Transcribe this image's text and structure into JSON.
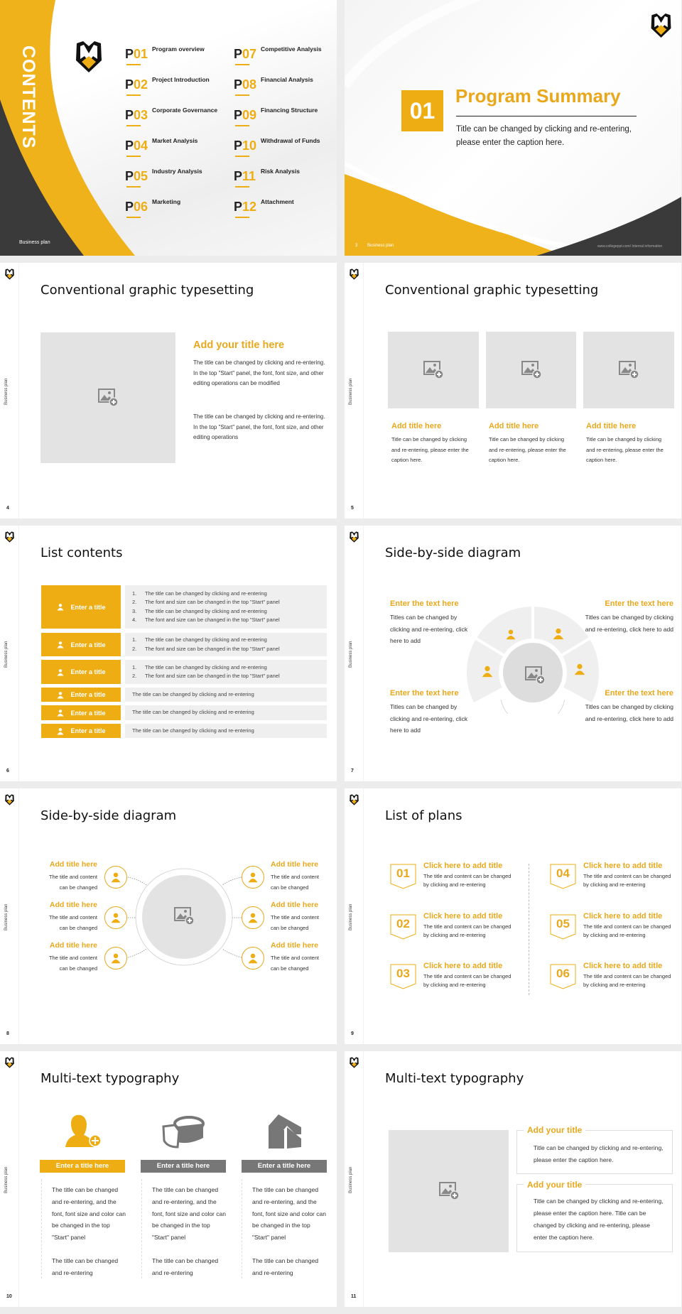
{
  "brand": {
    "accent": "#eeae13",
    "dark": "#3a3a3a",
    "placeholder": "#e4e3e3",
    "footer": "Business plan",
    "logo": "shield-m-logo"
  },
  "contents": {
    "heading": "CONTENTS",
    "items": [
      {
        "p": "P",
        "num": "01",
        "label": "Program overview"
      },
      {
        "p": "P",
        "num": "02",
        "label": "Project Introduction"
      },
      {
        "p": "P",
        "num": "03",
        "label": "Corporate Governance"
      },
      {
        "p": "P",
        "num": "04",
        "label": "Market Analysis"
      },
      {
        "p": "P",
        "num": "05",
        "label": "Industry Analysis"
      },
      {
        "p": "P",
        "num": "06",
        "label": "Marketing"
      },
      {
        "p": "P",
        "num": "07",
        "label": "Competitive Analysis"
      },
      {
        "p": "P",
        "num": "08",
        "label": "Financial Analysis"
      },
      {
        "p": "P",
        "num": "09",
        "label": "Financing Structure"
      },
      {
        "p": "P",
        "num": "10",
        "label": "Withdrawal of Funds"
      },
      {
        "p": "P",
        "num": "11",
        "label": "Risk Analysis"
      },
      {
        "p": "P",
        "num": "12",
        "label": "Attachment"
      }
    ]
  },
  "section": {
    "number": "01",
    "title": "Program Summary",
    "line1": "Title can be changed by clicking and re-entering,",
    "line2": "please enter the caption here.",
    "page": "3",
    "url": "www.collegeppt.com/ Internal information"
  },
  "slide4": {
    "page": "4",
    "title": "Conventional graphic typesetting",
    "heading": "Add your title here",
    "p1": "The title can be changed by clicking and re-entering. In the top \"Start\" panel, the font, font size, and other editing operations can be modified",
    "p2": "The title can be changed by clicking and re-entering. In the top \"Start\" panel, the font, font size, and other editing operations"
  },
  "slide5": {
    "page": "5",
    "title": "Conventional graphic typesetting",
    "cards": [
      {
        "title": "Add title here",
        "text": "Title can be changed by clicking and re-entering, please enter the caption here."
      },
      {
        "title": "Add title here",
        "text": "Title can be changed by clicking and re-entering, please enter the caption here."
      },
      {
        "title": "Add title here",
        "text": "Title can be changed by clicking and re-entering, please enter the caption here."
      }
    ]
  },
  "slide6": {
    "page": "6",
    "title": "List contents",
    "rows": [
      {
        "label": "Enter a title",
        "icon": "meeting-icon",
        "lines": [
          "1.|The title can be changed by clicking and re-entering",
          "2.|The font and size can be changed in the top \"Start\" panel",
          "3.|The title can be changed by clicking and re-entering",
          "4.|The font and size can be changed in the top \"Start\" panel"
        ]
      },
      {
        "label": "Enter a title",
        "icon": "users-icon",
        "lines": [
          "1.|The title can be changed by clicking and re-entering",
          "2.|The font and size can be changed in the top \"Start\" panel"
        ]
      },
      {
        "label": "Enter a title",
        "icon": "shield-icon",
        "lines": [
          "1.|The title can be changed by clicking and re-entering",
          "2.|The font and size can be changed in the top \"Start\" panel"
        ]
      },
      {
        "label": "Enter a title",
        "icon": "bar-chart-icon",
        "lines": [
          "The title can be changed by clicking and re-entering"
        ]
      },
      {
        "label": "Enter a title",
        "icon": "team-icon",
        "lines": [
          "The title can be changed by clicking and re-entering"
        ]
      },
      {
        "label": "Enter a title",
        "icon": "hand-user-icon",
        "lines": [
          "The title can be changed by clicking and re-entering"
        ]
      }
    ]
  },
  "slide7": {
    "page": "7",
    "title": "Side-by-side diagram",
    "blocks": [
      {
        "title": "Enter the text here",
        "text": "Titles can be changed by clicking and re-entering, click here to add"
      },
      {
        "title": "Enter the text here",
        "text": "Titles can be changed by clicking and re-entering, click here to add"
      },
      {
        "title": "Enter the text here",
        "text": "Titles can be changed by clicking and re-entering, click here to add"
      },
      {
        "title": "Enter the text here",
        "text": "Titles can be changed by clicking and re-entering, click here to add"
      }
    ]
  },
  "slide8": {
    "page": "8",
    "title": "Side-by-side diagram",
    "items": [
      {
        "title": "Add title here",
        "text": "The title and content can be changed"
      },
      {
        "title": "Add title here",
        "text": "The title and content can be changed"
      },
      {
        "title": "Add title here",
        "text": "The title and content can be changed"
      },
      {
        "title": "Add title here",
        "text": "The title and content can be changed"
      },
      {
        "title": "Add title here",
        "text": "The title and content can be changed"
      },
      {
        "title": "Add title here",
        "text": "The title and content can be changed"
      }
    ]
  },
  "slide9": {
    "page": "9",
    "title": "List of plans",
    "plans": [
      {
        "num": "01",
        "title": "Click here to add title",
        "text": "The title and content can be changed by clicking and re-entering"
      },
      {
        "num": "02",
        "title": "Click here to add title",
        "text": "The title and content can be changed by clicking and re-entering"
      },
      {
        "num": "03",
        "title": "Click here to add title",
        "text": "The title and content can be changed by clicking and re-entering"
      },
      {
        "num": "04",
        "title": "Click here to add title",
        "text": "The title and content can be changed by clicking and re-entering"
      },
      {
        "num": "05",
        "title": "Click here to add title",
        "text": "The title and content can be changed by clicking and re-entering"
      },
      {
        "num": "06",
        "title": "Click here to add title",
        "text": "The title and content can be changed by clicking and re-entering"
      }
    ]
  },
  "slide10": {
    "page": "10",
    "title": "Multi-text typography",
    "cols": [
      {
        "header": "Enter a title here",
        "p1": "The title can be changed and re-entering, and the font, font size and color can be changed in the top \"Start\" panel",
        "p2": "The title can be changed and re-entering"
      },
      {
        "header": "Enter a title here",
        "p1": "The title can be changed and re-entering, and the font, font size and color can be changed in the top \"Start\" panel",
        "p2": "The title can be changed and re-entering"
      },
      {
        "header": "Enter a title here",
        "p1": "The title can be changed and re-entering, and the font, font size and color can be changed in the top \"Start\" panel",
        "p2": "The title can be changed and re-entering"
      }
    ]
  },
  "slide11": {
    "page": "11",
    "title": "Multi-text typography",
    "boxes": [
      {
        "title": "Add your title",
        "text": "Title can be changed by clicking and re-entering, please enter the caption here."
      },
      {
        "title": "Add your title",
        "text": "Title can be changed by clicking and re-entering, please enter the caption here. Title can be changed by clicking and re-entering, please enter the caption here."
      }
    ]
  }
}
